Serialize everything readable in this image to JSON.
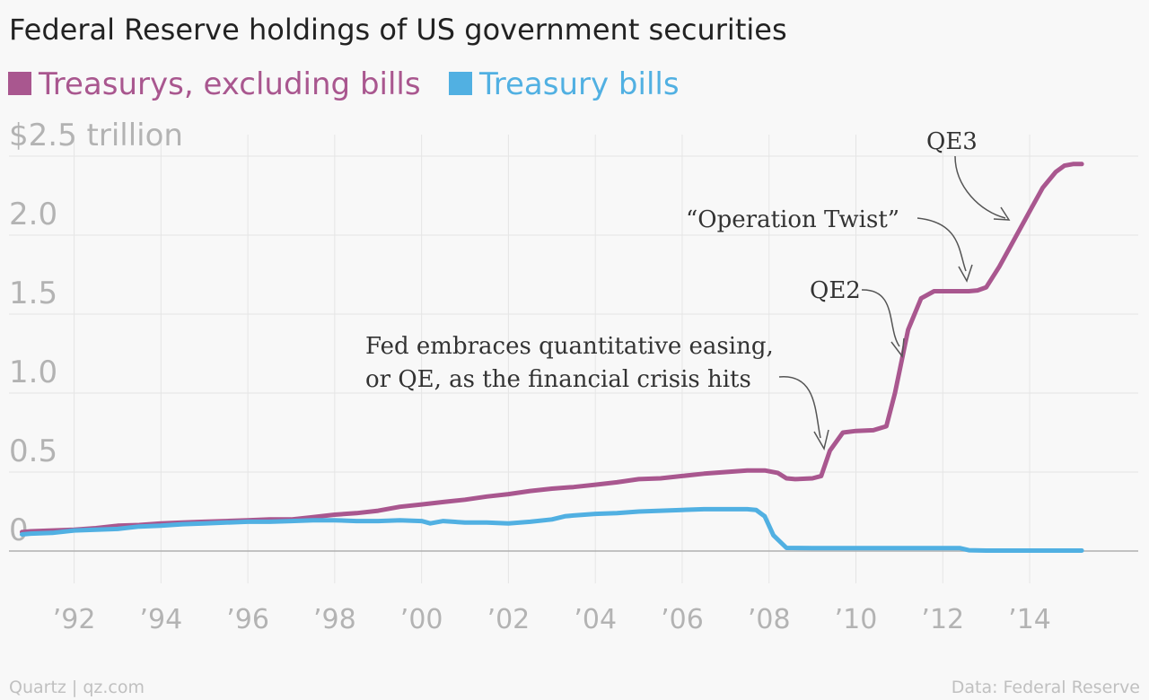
{
  "title": "Federal Reserve holdings of US government securities",
  "source": "Data: Federal Reserve",
  "brand": "Quartz | qz.com",
  "colors": {
    "treasurys_excluding_bills": "#a9578f",
    "treasury_bills": "#51b0e2",
    "grid": "#e5e5e5",
    "baseline": "#b0b0b0",
    "tick_text": "#b3b3b3",
    "annotation_text": "#333333",
    "background": "#f8f8f8"
  },
  "chart_data": {
    "type": "line",
    "title": "Federal Reserve holdings of US government securities",
    "xlabel": "",
    "ylabel": "",
    "x_range": [
      1990.5,
      2016.5
    ],
    "ylim": [
      0,
      2.5
    ],
    "y_ticks": [
      {
        "value": 0,
        "label": "0"
      },
      {
        "value": 0.5,
        "label": "0.5"
      },
      {
        "value": 1.0,
        "label": "1.0"
      },
      {
        "value": 1.5,
        "label": "1.5"
      },
      {
        "value": 2.0,
        "label": "2.0"
      },
      {
        "value": 2.5,
        "label": "$2.5 trillion"
      }
    ],
    "x_ticks": [
      {
        "value": 1992,
        "label": "’92"
      },
      {
        "value": 1994,
        "label": "’94"
      },
      {
        "value": 1996,
        "label": "’96"
      },
      {
        "value": 1998,
        "label": "’98"
      },
      {
        "value": 2000,
        "label": "’00"
      },
      {
        "value": 2002,
        "label": "’02"
      },
      {
        "value": 2004,
        "label": "’04"
      },
      {
        "value": 2006,
        "label": "’06"
      },
      {
        "value": 2008,
        "label": "’08"
      },
      {
        "value": 2010,
        "label": "’10"
      },
      {
        "value": 2012,
        "label": "’12"
      },
      {
        "value": 2014,
        "label": "’14"
      }
    ],
    "grid": true,
    "legend_position": "top-left",
    "series": [
      {
        "name": "Treasurys, excluding bills",
        "color": "#a9578f",
        "points": [
          [
            1990.8,
            0.12
          ],
          [
            1991.0,
            0.125
          ],
          [
            1991.5,
            0.13
          ],
          [
            1992.0,
            0.135
          ],
          [
            1992.5,
            0.145
          ],
          [
            1993.0,
            0.16
          ],
          [
            1993.5,
            0.165
          ],
          [
            1994.0,
            0.175
          ],
          [
            1994.5,
            0.18
          ],
          [
            1995.0,
            0.185
          ],
          [
            1995.5,
            0.19
          ],
          [
            1996.0,
            0.195
          ],
          [
            1996.5,
            0.2
          ],
          [
            1997.0,
            0.2
          ],
          [
            1997.5,
            0.215
          ],
          [
            1998.0,
            0.23
          ],
          [
            1998.5,
            0.24
          ],
          [
            1999.0,
            0.255
          ],
          [
            1999.5,
            0.28
          ],
          [
            2000.0,
            0.295
          ],
          [
            2000.5,
            0.31
          ],
          [
            2001.0,
            0.325
          ],
          [
            2001.5,
            0.345
          ],
          [
            2002.0,
            0.36
          ],
          [
            2002.5,
            0.38
          ],
          [
            2003.0,
            0.395
          ],
          [
            2003.5,
            0.405
          ],
          [
            2004.0,
            0.42
          ],
          [
            2004.5,
            0.435
          ],
          [
            2005.0,
            0.455
          ],
          [
            2005.5,
            0.46
          ],
          [
            2006.0,
            0.475
          ],
          [
            2006.5,
            0.49
          ],
          [
            2007.0,
            0.5
          ],
          [
            2007.5,
            0.51
          ],
          [
            2007.9,
            0.51
          ],
          [
            2008.2,
            0.495
          ],
          [
            2008.4,
            0.46
          ],
          [
            2008.6,
            0.455
          ],
          [
            2009.0,
            0.46
          ],
          [
            2009.2,
            0.475
          ],
          [
            2009.4,
            0.635
          ],
          [
            2009.7,
            0.75
          ],
          [
            2010.0,
            0.76
          ],
          [
            2010.4,
            0.765
          ],
          [
            2010.7,
            0.79
          ],
          [
            2010.9,
            1.0
          ],
          [
            2011.2,
            1.4
          ],
          [
            2011.5,
            1.6
          ],
          [
            2011.8,
            1.645
          ],
          [
            2012.0,
            1.645
          ],
          [
            2012.3,
            1.645
          ],
          [
            2012.6,
            1.645
          ],
          [
            2012.8,
            1.65
          ],
          [
            2013.0,
            1.67
          ],
          [
            2013.3,
            1.8
          ],
          [
            2013.6,
            1.95
          ],
          [
            2014.0,
            2.15
          ],
          [
            2014.3,
            2.3
          ],
          [
            2014.6,
            2.4
          ],
          [
            2014.8,
            2.44
          ],
          [
            2015.0,
            2.45
          ],
          [
            2015.2,
            2.45
          ]
        ]
      },
      {
        "name": "Treasury bills",
        "color": "#51b0e2",
        "points": [
          [
            1990.8,
            0.105
          ],
          [
            1991.0,
            0.11
          ],
          [
            1991.5,
            0.115
          ],
          [
            1992.0,
            0.13
          ],
          [
            1992.5,
            0.135
          ],
          [
            1993.0,
            0.14
          ],
          [
            1993.5,
            0.155
          ],
          [
            1994.0,
            0.16
          ],
          [
            1994.5,
            0.17
          ],
          [
            1995.0,
            0.175
          ],
          [
            1995.5,
            0.18
          ],
          [
            1996.0,
            0.185
          ],
          [
            1996.5,
            0.185
          ],
          [
            1997.0,
            0.19
          ],
          [
            1997.5,
            0.195
          ],
          [
            1998.0,
            0.195
          ],
          [
            1998.5,
            0.19
          ],
          [
            1999.0,
            0.19
          ],
          [
            1999.5,
            0.195
          ],
          [
            2000.0,
            0.19
          ],
          [
            2000.2,
            0.175
          ],
          [
            2000.5,
            0.19
          ],
          [
            2001.0,
            0.18
          ],
          [
            2001.5,
            0.18
          ],
          [
            2002.0,
            0.175
          ],
          [
            2002.5,
            0.185
          ],
          [
            2003.0,
            0.2
          ],
          [
            2003.3,
            0.22
          ],
          [
            2003.5,
            0.225
          ],
          [
            2004.0,
            0.235
          ],
          [
            2004.5,
            0.24
          ],
          [
            2005.0,
            0.25
          ],
          [
            2005.5,
            0.255
          ],
          [
            2006.0,
            0.26
          ],
          [
            2006.5,
            0.265
          ],
          [
            2007.0,
            0.265
          ],
          [
            2007.5,
            0.265
          ],
          [
            2007.7,
            0.26
          ],
          [
            2007.9,
            0.22
          ],
          [
            2008.1,
            0.1
          ],
          [
            2008.4,
            0.02
          ],
          [
            2009.0,
            0.018
          ],
          [
            2010.0,
            0.018
          ],
          [
            2011.0,
            0.018
          ],
          [
            2012.0,
            0.018
          ],
          [
            2012.4,
            0.018
          ],
          [
            2012.6,
            0.005
          ],
          [
            2013.0,
            0.003
          ],
          [
            2014.0,
            0.003
          ],
          [
            2015.2,
            0.003
          ]
        ]
      }
    ],
    "annotations": [
      {
        "lines": [
          "Fed embraces quantitative easing,",
          "or QE, as the financial crisis hits"
        ],
        "target": [
          2008.9,
          0.63
        ]
      },
      {
        "lines": [
          "QE2"
        ],
        "target": [
          2010.6,
          1.22
        ]
      },
      {
        "lines": [
          "“Operation Twist”"
        ],
        "target": [
          2012.2,
          1.73
        ]
      },
      {
        "lines": [
          "QE3"
        ],
        "target": [
          2013.4,
          2.07
        ]
      }
    ]
  }
}
